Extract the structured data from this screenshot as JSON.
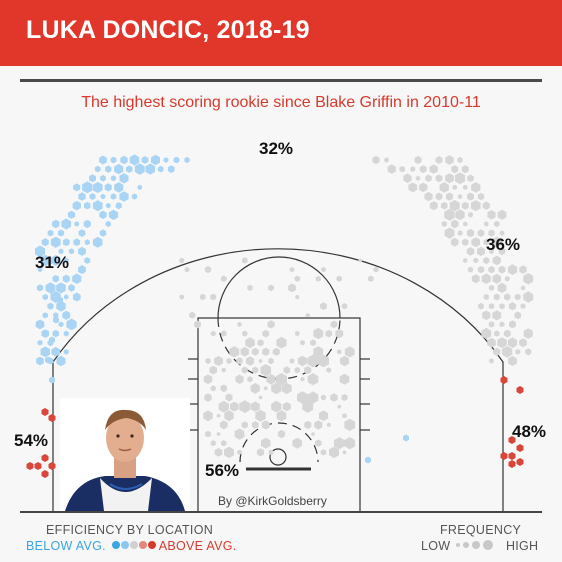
{
  "header": {
    "title": "LUKA DONCIC, 2018-19",
    "subtitle": "The highest scoring rookie since Blake Griffin in 2010-11"
  },
  "credit": "By @KirkGoldsberry",
  "legend": {
    "efficiency_title": "EFFICIENCY BY LOCATION",
    "below_label": "BELOW AVG.",
    "above_label": "ABOVE AVG.",
    "frequency_title": "FREQUENCY",
    "low_label": "LOW",
    "high_label": "HIGH"
  },
  "colors": {
    "banner": "#e1362a",
    "below_avg": "#a9d4f3",
    "average": "#d6d6d6",
    "above_avg": "#d9463a"
  },
  "chart_data": {
    "type": "hexbin shot chart",
    "zones": [
      {
        "zone": "Left corner three",
        "pct": "54%",
        "efficiency": "above"
      },
      {
        "zone": "Left wing three",
        "pct": "31%",
        "efficiency": "below"
      },
      {
        "zone": "Top of key three",
        "pct": "32%",
        "efficiency": "below"
      },
      {
        "zone": "Right wing three",
        "pct": "36%",
        "efficiency": "average"
      },
      {
        "zone": "Right corner three",
        "pct": "48%",
        "efficiency": "above"
      },
      {
        "zone": "Restricted area",
        "pct": "56%",
        "efficiency": "average"
      }
    ]
  }
}
